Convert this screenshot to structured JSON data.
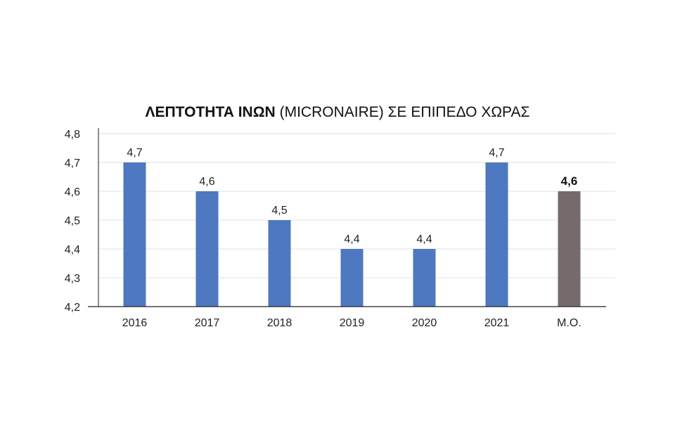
{
  "chart_data": {
    "type": "bar",
    "title_bold": "ΛΕΠΤΟΤΗΤΑ ΙΝΩΝ",
    "title_rest": "(MICRONAIRE) ΣΕ ΕΠΙΠΕΔΟ ΧΩΡΑΣ",
    "categories": [
      "2016",
      "2017",
      "2018",
      "2019",
      "2020",
      "2021",
      "M.O."
    ],
    "values": [
      4.7,
      4.6,
      4.5,
      4.4,
      4.4,
      4.7,
      4.6
    ],
    "value_labels": [
      "4,7",
      "4,6",
      "4,5",
      "4,4",
      "4,4",
      "4,7",
      "4,6"
    ],
    "highlight_index": 6,
    "colors": {
      "bar": "#4E78C0",
      "highlight": "#756B6C",
      "grid": "#E2E2E2",
      "axis": "#222222"
    },
    "ylim": [
      4.2,
      4.8
    ],
    "yticks": [
      4.2,
      4.3,
      4.4,
      4.5,
      4.6,
      4.7,
      4.8
    ],
    "ytick_labels": [
      "4,2",
      "4,3",
      "4,4",
      "4,5",
      "4,6",
      "4,7",
      "4,8"
    ],
    "grid": true,
    "legend": "none"
  }
}
